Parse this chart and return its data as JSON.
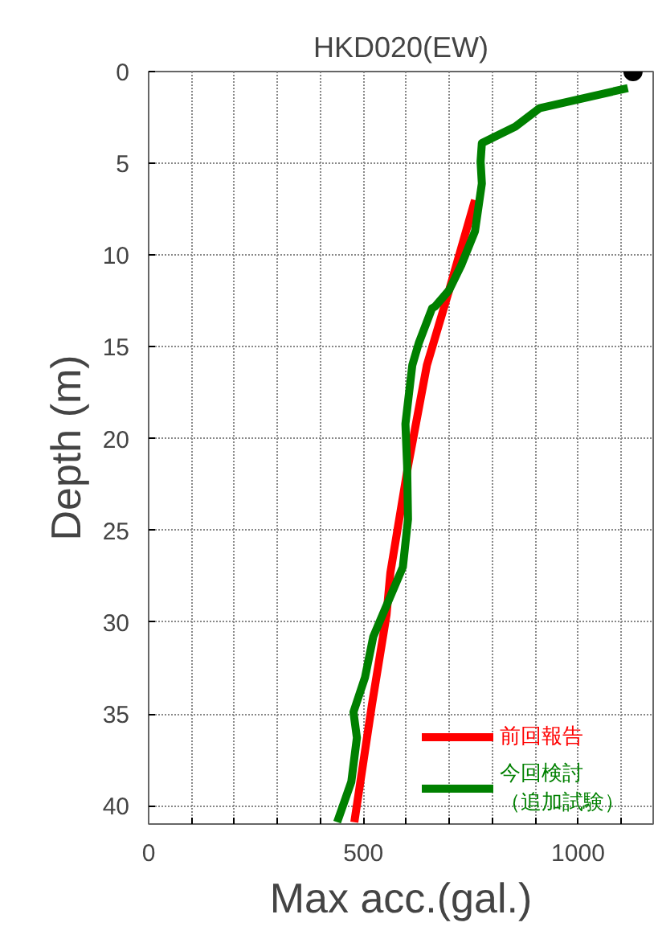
{
  "chart_data": {
    "type": "line",
    "title": "HKD020(EW)",
    "xlabel": "Max acc.(gal.)",
    "ylabel": "Depth (m)",
    "xlim": [
      0,
      1175
    ],
    "ylim": [
      41,
      0
    ],
    "xticks": [
      0,
      {
        "value": 100,
        "label": null
      },
      {
        "value": 200,
        "label": null
      },
      {
        "value": 300,
        "label": null
      },
      {
        "value": 400,
        "label": null
      },
      500,
      {
        "value": 600,
        "label": null
      },
      {
        "value": 700,
        "label": null
      },
      {
        "value": 800,
        "label": null
      },
      {
        "value": 900,
        "label": null
      },
      1000,
      {
        "value": 1100,
        "label": null
      }
    ],
    "yticks": [
      0,
      5,
      10,
      15,
      20,
      25,
      30,
      35,
      40
    ],
    "grid": true,
    "legend": "bottom right",
    "line_style": "solid",
    "series": [
      {
        "name": "前回報告",
        "color": "#ff0000",
        "x": [
          760,
          700,
          648,
          604,
          563,
          554,
          520,
          479
        ],
        "values": [
          7,
          11.9,
          16,
          21.5,
          27.3,
          29.6,
          34.5,
          40.9
        ]
      },
      {
        "name": "今回検討（追加試験）",
        "color": "#008000",
        "x": [
          1116,
          910,
          854,
          776,
          773,
          776,
          760,
          729,
          700,
          667,
          660,
          629,
          614,
          598,
          602,
          604,
          592,
          523,
          504,
          477,
          485,
          472,
          439
        ],
        "values": [
          0.9,
          2.0,
          3.0,
          3.9,
          4.9,
          6.1,
          8.7,
          10.5,
          11.9,
          12.8,
          12.9,
          14.8,
          16,
          19.2,
          21.5,
          24.4,
          27,
          30.8,
          33,
          34.9,
          36.3,
          38.7,
          40.9
        ]
      },
      {
        "type": "scatter",
        "marker": "circle",
        "color": "#000000",
        "x": [
          1128
        ],
        "values": [
          0
        ]
      }
    ]
  }
}
